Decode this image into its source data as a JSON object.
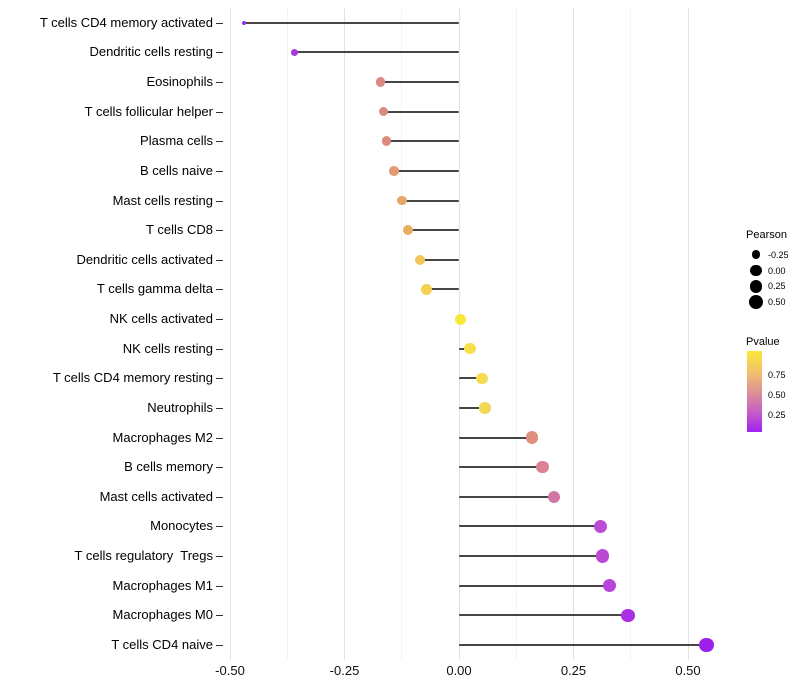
{
  "chart_data": {
    "type": "lollipop",
    "description": "Horizontal lollipop chart of immune cell type Pearson correlations; dot size maps Pearson, dot color maps Pvalue (yellow high to purple low)",
    "xlabel": "",
    "ylabel": "",
    "xlim": [
      -0.51,
      0.53
    ],
    "x_major_ticks": [
      -0.5,
      -0.25,
      0,
      0.25,
      0.5
    ],
    "x_minor_ticks": [
      -0.375,
      -0.125,
      0.125,
      0.375
    ],
    "x_tick_labels": [
      "-0.50",
      "-0.25",
      "0.00",
      "0.25",
      "0.50"
    ],
    "grid": "vertical-only",
    "points": [
      {
        "label": "T cells CD4 memory activated",
        "pearson": -0.47,
        "color": "#9A2EE4"
      },
      {
        "label": "Dendritic cells resting",
        "pearson": -0.36,
        "color": "#A53ADF"
      },
      {
        "label": "Eosinophils",
        "pearson": -0.172,
        "color": "#DB8A83"
      },
      {
        "label": "T cells follicular helper",
        "pearson": -0.165,
        "color": "#DB8A83"
      },
      {
        "label": "Plasma cells",
        "pearson": -0.158,
        "color": "#DC8980"
      },
      {
        "label": "B cells naive",
        "pearson": -0.142,
        "color": "#E29B73"
      },
      {
        "label": "Mast cells resting",
        "pearson": -0.125,
        "color": "#E7A568"
      },
      {
        "label": "T cells CD8",
        "pearson": -0.112,
        "color": "#EAAC60"
      },
      {
        "label": "Dendritic cells activated",
        "pearson": -0.085,
        "color": "#F1C65B"
      },
      {
        "label": "T cells gamma delta",
        "pearson": -0.071,
        "color": "#F4D150"
      },
      {
        "label": "NK cells activated",
        "pearson": 0.004,
        "color": "#F8E83C"
      },
      {
        "label": "NK cells resting",
        "pearson": 0.024,
        "color": "#F8E04C"
      },
      {
        "label": "T cells CD4 memory resting",
        "pearson": 0.05,
        "color": "#F6DC53"
      },
      {
        "label": "Neutrophils",
        "pearson": 0.057,
        "color": "#F5D75A"
      },
      {
        "label": "Macrophages M2",
        "pearson": 0.159,
        "color": "#DE8F7E"
      },
      {
        "label": "B cells memory",
        "pearson": 0.182,
        "color": "#DB8392"
      },
      {
        "label": "Mast cells activated",
        "pearson": 0.207,
        "color": "#D275A2"
      },
      {
        "label": "Monocytes",
        "pearson": 0.309,
        "color": "#BC4BD5"
      },
      {
        "label": "T cells regulatory  Tregs",
        "pearson": 0.314,
        "color": "#BB49D4"
      },
      {
        "label": "Macrophages M1",
        "pearson": 0.328,
        "color": "#B845D8"
      },
      {
        "label": "Macrophages M0",
        "pearson": 0.369,
        "color": "#AC30E3"
      },
      {
        "label": "T cells CD4 naive",
        "pearson": 0.541,
        "color": "#9D20ED"
      }
    ],
    "size_legend": {
      "title": "Pearson",
      "entries": [
        {
          "label": "-0.25",
          "value": -0.25
        },
        {
          "label": "0.00",
          "value": 0.0
        },
        {
          "label": "0.25",
          "value": 0.25
        },
        {
          "label": "0.50",
          "value": 0.5
        }
      ]
    },
    "color_legend": {
      "title": "Pvalue",
      "ticks": [
        {
          "label": "0.75",
          "pos": 0.296
        },
        {
          "label": "0.50",
          "pos": 0.543
        },
        {
          "label": "0.25",
          "pos": 0.79
        }
      ],
      "gradient_stops": [
        "#F9E93B",
        "#F2C36B",
        "#DE9292",
        "#C65FC5",
        "#A021EF"
      ]
    },
    "colors": {
      "stem": "#454545",
      "grid_major": "#e2e2e2",
      "grid_minor": "#f3f3f3",
      "axis_text": "#111111"
    }
  }
}
